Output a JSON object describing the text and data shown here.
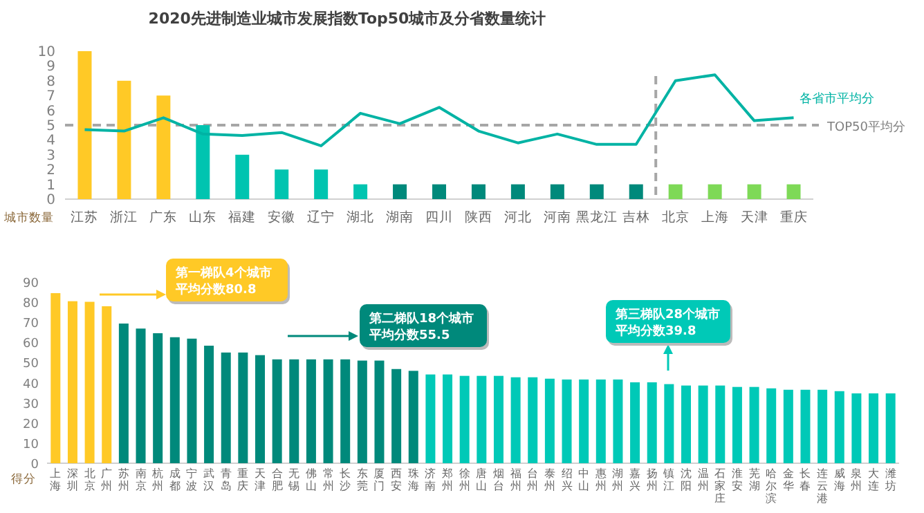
{
  "chart_data": [
    {
      "type": "bar",
      "title": "2020先进制造业城市发展指数Top50城市及分省数量统计",
      "ylabel": "城市数量",
      "categories": [
        "江苏",
        "浙江",
        "广东",
        "山东",
        "福建",
        "安徽",
        "辽宁",
        "湖北",
        "湖南",
        "四川",
        "陕西",
        "河北",
        "河南",
        "黑龙江",
        "吉林",
        "北京",
        "上海",
        "天津",
        "重庆"
      ],
      "series": [
        {
          "type": "bar",
          "values": [
            10,
            8,
            7,
            5,
            3,
            2,
            2,
            1,
            1,
            1,
            1,
            1,
            1,
            1,
            1,
            1,
            1,
            1,
            1
          ],
          "colors": [
            "#ffc926",
            "#ffc926",
            "#ffc926",
            "#00c4b0",
            "#00c4b0",
            "#00c4b0",
            "#00c4b0",
            "#00c4b0",
            "#00897b",
            "#00897b",
            "#00897b",
            "#00897b",
            "#00897b",
            "#00897b",
            "#00897b",
            "#7ed957",
            "#7ed957",
            "#7ed957",
            "#7ed957"
          ]
        },
        {
          "type": "line",
          "name": "各省市平均分",
          "color": "#00b3a4",
          "values": [
            4.7,
            4.6,
            5.5,
            4.4,
            4.3,
            4.5,
            3.6,
            5.8,
            5.1,
            6.2,
            4.6,
            3.8,
            4.4,
            3.7,
            3.7,
            8.0,
            8.4,
            5.3,
            5.5
          ]
        }
      ],
      "ylim": [
        0,
        10
      ],
      "yticks": [
        0,
        1,
        2,
        3,
        4,
        5,
        6,
        7,
        8,
        9,
        10
      ],
      "grid": false,
      "legend": false,
      "ref_lines": [
        {
          "axis": "y",
          "value": 5,
          "label": "TOP50平均分",
          "color": "#a6a6a6",
          "line_style": "dashed"
        }
      ]
    },
    {
      "type": "bar",
      "ylabel": "得分",
      "categories": [
        "上海",
        "深圳",
        "北京",
        "广州",
        "苏州",
        "南京",
        "杭州",
        "成都",
        "宁波",
        "武汉",
        "青岛",
        "重庆",
        "天津",
        "合肥",
        "无锡",
        "佛山",
        "常州",
        "长沙",
        "东莞",
        "厦门",
        "西安",
        "珠海",
        "济南",
        "郑州",
        "徐州",
        "唐山",
        "烟台",
        "福州",
        "台州",
        "泰州",
        "绍兴",
        "中山",
        "惠州",
        "湖州",
        "嘉兴",
        "扬州",
        "镇江",
        "沈阳",
        "温州",
        "石家庄",
        "淮安",
        "芜湖",
        "哈尔滨",
        "金华",
        "长春",
        "连云港",
        "威海",
        "泉州",
        "大连",
        "潍坊"
      ],
      "values": [
        84.5,
        80.5,
        80.2,
        78.0,
        69.4,
        66.9,
        64.6,
        62.6,
        61.9,
        58.4,
        55.0,
        55.0,
        53.7,
        51.6,
        51.6,
        51.6,
        51.6,
        51.6,
        51.0,
        51.0,
        46.8,
        45.9,
        44.1,
        44.1,
        43.4,
        43.4,
        43.4,
        42.7,
        42.7,
        42.0,
        41.6,
        41.6,
        41.6,
        41.6,
        40.2,
        40.2,
        39.3,
        38.6,
        38.6,
        38.6,
        37.9,
        37.9,
        37.2,
        36.5,
        36.5,
        36.5,
        35.8,
        34.7,
        34.7,
        34.7
      ],
      "colors": [
        "#ffc926",
        "#ffc926",
        "#ffc926",
        "#ffc926",
        "#00897b",
        "#00897b",
        "#00897b",
        "#00897b",
        "#00897b",
        "#00897b",
        "#00897b",
        "#00897b",
        "#00897b",
        "#00897b",
        "#00897b",
        "#00897b",
        "#00897b",
        "#00897b",
        "#00897b",
        "#00897b",
        "#00897b",
        "#00897b",
        "#00c9b7",
        "#00c9b7",
        "#00c9b7",
        "#00c9b7",
        "#00c9b7",
        "#00c9b7",
        "#00c9b7",
        "#00c9b7",
        "#00c9b7",
        "#00c9b7",
        "#00c9b7",
        "#00c9b7",
        "#00c9b7",
        "#00c9b7",
        "#00c9b7",
        "#00c9b7",
        "#00c9b7",
        "#00c9b7",
        "#00c9b7",
        "#00c9b7",
        "#00c9b7",
        "#00c9b7",
        "#00c9b7",
        "#00c9b7",
        "#00c9b7",
        "#00c9b7",
        "#00c9b7",
        "#00c9b7"
      ],
      "ylim": [
        0,
        90
      ],
      "yticks": [
        0,
        10,
        20,
        30,
        40,
        50,
        60,
        70,
        80,
        90
      ],
      "grid": false,
      "legend": false,
      "annotations": [
        "第一梯队4个城市",
        "平均分数80.8",
        "第二梯队18个城市",
        "平均分数55.5",
        "第三梯队28个城市",
        "平均分数39.8"
      ]
    }
  ]
}
